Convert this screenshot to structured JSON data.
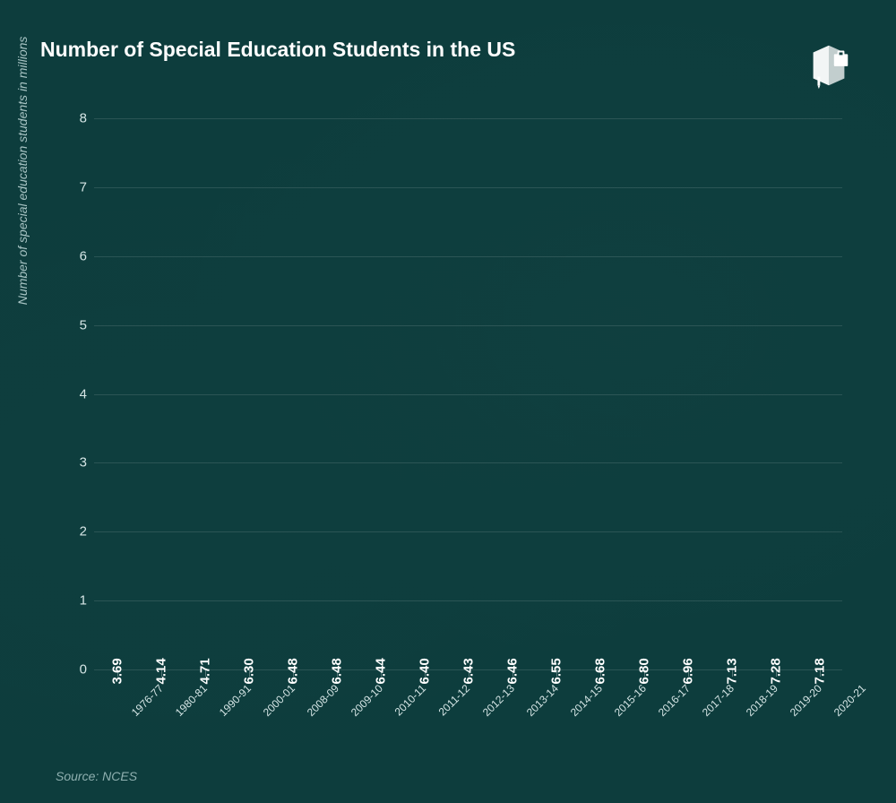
{
  "title": "Number of Special Education Students in the US",
  "source_label": "Source: NCES",
  "y_axis_label": "Number of special education students in millions",
  "logo_name": "book-briefcase-icon",
  "chart": {
    "type": "bar",
    "ylim": [
      0,
      8
    ],
    "yticks": [
      0,
      1,
      2,
      3,
      4,
      5,
      6,
      7,
      8
    ],
    "background_color": "#0d3d3d",
    "grid_color": "rgba(255,255,255,0.12)",
    "tick_color": "#d5e5e5",
    "value_label_color": "#ffffff",
    "value_label_fontsize": 15,
    "categories": [
      "1976-77",
      "1980-81",
      "1990-91",
      "2000-01",
      "2008-09",
      "2009-10",
      "2010-11",
      "2011-12",
      "2012-13",
      "2013-14",
      "2014-15",
      "2015-16",
      "2016-17",
      "2017-18",
      "2018-19",
      "2019-20",
      "2020-21"
    ],
    "values": [
      3.69,
      4.14,
      4.71,
      6.3,
      6.48,
      6.48,
      6.44,
      6.4,
      6.43,
      6.46,
      6.55,
      6.68,
      6.8,
      6.96,
      7.13,
      7.28,
      7.18
    ],
    "value_labels": [
      "3.69",
      "4.14",
      "4.71",
      "6.30",
      "6.48",
      "6.48",
      "6.44",
      "6.40",
      "6.43",
      "6.46",
      "6.55",
      "6.68",
      "6.80",
      "6.96",
      "7.13",
      "7.28",
      "7.18"
    ],
    "bar_colors": [
      "#1a9cb7",
      "#2bc4b6",
      "#2bc4b6",
      "#2bc4b6",
      "#2bc4b6",
      "#2bc4b6",
      "#2bc4b6",
      "#2bc4b6",
      "#2bc4b6",
      "#2bc4b6",
      "#2bc4b6",
      "#2bc4b6",
      "#2bc4b6",
      "#2bc4b6",
      "#2bc4b6",
      "#2bc4b6",
      "#2bc4b6"
    ]
  }
}
